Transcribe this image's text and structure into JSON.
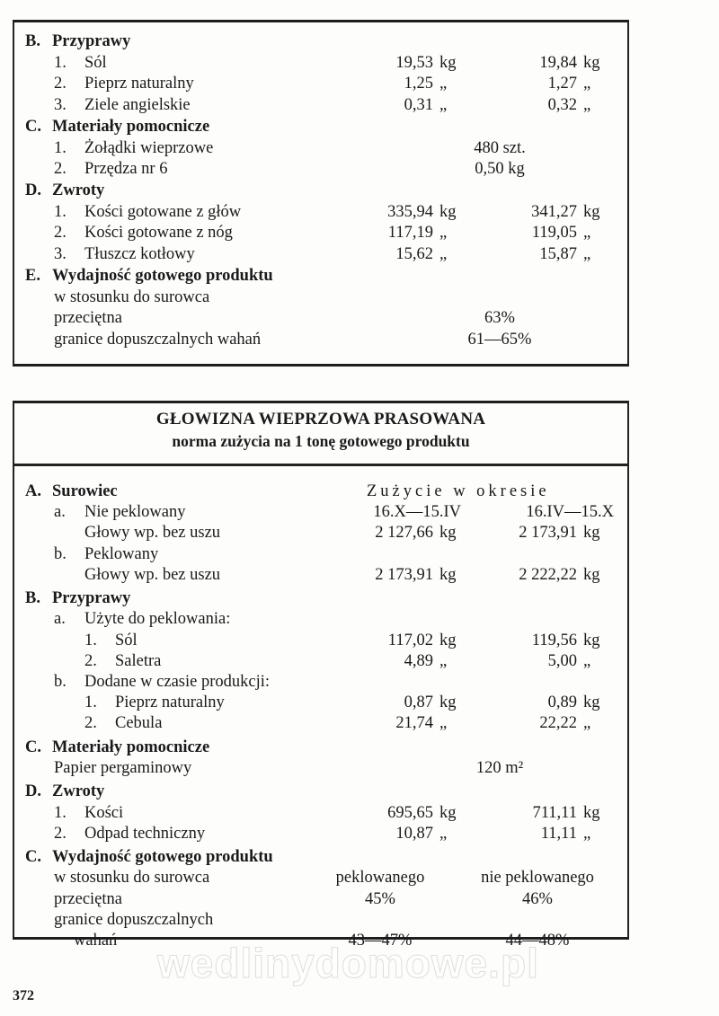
{
  "table1": {
    "rows": [
      {
        "kind": "section",
        "prefix": "B.",
        "text": "Przyprawy"
      },
      {
        "kind": "kg",
        "level": 1,
        "prefix": "1.",
        "text": "Sól",
        "v1": "19,53",
        "u1": "kg",
        "v2": "19,84",
        "u2": "kg"
      },
      {
        "kind": "kg",
        "level": 1,
        "prefix": "2.",
        "text": "Pieprz naturalny",
        "v1": "1,25",
        "u1": "„",
        "v2": "1,27",
        "u2": "„"
      },
      {
        "kind": "kg",
        "level": 1,
        "prefix": "3.",
        "text": "Ziele angielskie",
        "v1": "0,31",
        "u1": "„",
        "v2": "0,32",
        "u2": "„"
      },
      {
        "kind": "section",
        "prefix": "C.",
        "text": "Materiały pomocnicze"
      },
      {
        "kind": "center",
        "level": 1,
        "prefix": "1.",
        "text": "Żołądki wieprzowe",
        "c": "480 szt."
      },
      {
        "kind": "center",
        "level": 1,
        "prefix": "2.",
        "text": "Przędza nr 6",
        "c": "0,50 kg"
      },
      {
        "kind": "section",
        "prefix": "D.",
        "text": "Zwroty"
      },
      {
        "kind": "kg",
        "level": 1,
        "prefix": "1.",
        "text": "Kości gotowane z głów",
        "v1": "335,94",
        "u1": "kg",
        "v2": "341,27",
        "u2": "kg"
      },
      {
        "kind": "kg",
        "level": 1,
        "prefix": "2.",
        "text": "Kości gotowane z nóg",
        "v1": "117,19",
        "u1": "„",
        "v2": "119,05",
        "u2": "„"
      },
      {
        "kind": "kg",
        "level": 1,
        "prefix": "3.",
        "text": "Tłuszcz kotłowy",
        "v1": "15,62",
        "u1": "„",
        "v2": "15,87",
        "u2": "„"
      },
      {
        "kind": "section",
        "prefix": "E.",
        "text": "Wydajność gotowego produktu"
      },
      {
        "kind": "plain",
        "level": 1,
        "text": "w stosunku do surowca"
      },
      {
        "kind": "center",
        "level": 1,
        "text": "przeciętna",
        "c": "63%"
      },
      {
        "kind": "center",
        "level": 1,
        "text": "granice dopuszczalnych wahań",
        "c": "61—65%"
      }
    ]
  },
  "table2": {
    "title": "GŁOWIZNA WIEPRZOWA PRASOWANA",
    "subtitle": "norma zużycia na 1 tonę gotowego produktu",
    "rows": [
      {
        "kind": "header",
        "prefix": "A.",
        "text": "Surowiec",
        "h": "Zużycie w okresie"
      },
      {
        "kind": "dates",
        "level": 1,
        "prefix": "a.",
        "text": "Nie peklowany",
        "d1": "16.X—15.IV",
        "d2": "16.IV—15.X"
      },
      {
        "kind": "kg",
        "level": 2,
        "text": "Głowy wp. bez uszu",
        "v1": "2 127,66",
        "u1": "kg",
        "v2": "2 173,91",
        "u2": "kg"
      },
      {
        "kind": "plain",
        "level": 1,
        "prefix": "b.",
        "text": "Peklowany"
      },
      {
        "kind": "kg",
        "level": 2,
        "text": "Głowy wp. bez uszu",
        "v1": "2 173,91",
        "u1": "kg",
        "v2": "2 222,22",
        "u2": "kg"
      },
      {
        "kind": "section",
        "prefix": "B.",
        "text": "Przyprawy"
      },
      {
        "kind": "plain",
        "level": 1,
        "prefix": "a.",
        "text": "Użyte do peklowania:"
      },
      {
        "kind": "kg",
        "level": 2,
        "prefix": "1.",
        "text": "Sól",
        "v1": "117,02",
        "u1": "kg",
        "v2": "119,56",
        "u2": "kg"
      },
      {
        "kind": "kg",
        "level": 2,
        "prefix": "2.",
        "text": "Saletra",
        "v1": "4,89",
        "u1": "„",
        "v2": "5,00",
        "u2": "„"
      },
      {
        "kind": "plain",
        "level": 1,
        "prefix": "b.",
        "text": "Dodane w czasie produkcji:"
      },
      {
        "kind": "kg",
        "level": 2,
        "prefix": "1.",
        "text": "Pieprz naturalny",
        "v1": "0,87",
        "u1": "kg",
        "v2": "0,89",
        "u2": "kg"
      },
      {
        "kind": "kg",
        "level": 2,
        "prefix": "2.",
        "text": "Cebula",
        "v1": "21,74",
        "u1": "„",
        "v2": "22,22",
        "u2": "„"
      },
      {
        "kind": "section",
        "prefix": "C.",
        "text": "Materiały pomocnicze"
      },
      {
        "kind": "center",
        "level": 1,
        "text": "Papier pergaminowy",
        "c": "120 m²"
      },
      {
        "kind": "section",
        "prefix": "D.",
        "text": "Zwroty"
      },
      {
        "kind": "kg",
        "level": 1,
        "prefix": "1.",
        "text": "Kości",
        "v1": "695,65",
        "u1": "kg",
        "v2": "711,11",
        "u2": "kg"
      },
      {
        "kind": "kg",
        "level": 1,
        "prefix": "2.",
        "text": "Odpad techniczny",
        "v1": "10,87",
        "u1": "„",
        "v2": "11,11",
        "u2": "„"
      },
      {
        "kind": "section",
        "prefix": "C.",
        "text": "Wydajność gotowego produktu"
      },
      {
        "kind": "pair",
        "level": 1,
        "text": "w stosunku do surowca",
        "p1": "peklowanego",
        "p2": "nie peklowanego"
      },
      {
        "kind": "pair",
        "level": 1,
        "text": "przeciętna",
        "p1": "45%",
        "p2": "46%"
      },
      {
        "kind": "plain",
        "level": 1,
        "text": "granice dopuszczalnych"
      },
      {
        "kind": "pair",
        "level": 3,
        "text": "wahań",
        "p1": "43—47%",
        "p2": "44—48%"
      }
    ]
  },
  "page_number": "372",
  "watermark": "wedlinydomowe.pl"
}
